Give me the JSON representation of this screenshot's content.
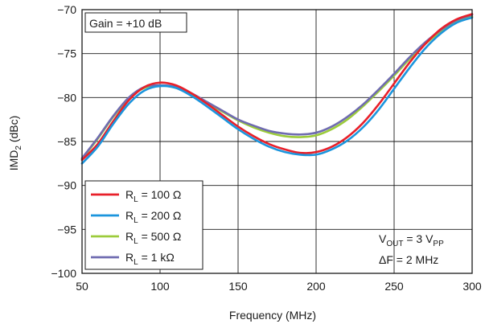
{
  "chart_data": {
    "type": "line",
    "xlabel": "Frequency (MHz)",
    "ylabel_main": "IMD",
    "ylabel_sub": "2",
    "ylabel_unit": " (dBc)",
    "xlim": [
      50,
      300
    ],
    "ylim": [
      -100,
      -70
    ],
    "xticks": [
      "50",
      "100",
      "150",
      "200",
      "250",
      "300"
    ],
    "yticks": [
      "−70",
      "−75",
      "−80",
      "−85",
      "−90",
      "−95",
      "−100"
    ],
    "grid": true,
    "gain_note": "Gain = +10 dB",
    "conditions": {
      "line1": {
        "v": "V",
        "out": "OUT",
        "eq": " = 3 V",
        "pp": "PP"
      },
      "line2": "ΔF = 2 MHz"
    },
    "legend_position": "bottom-left",
    "series": [
      {
        "name": "R",
        "name_sub": "L",
        "name_rest": " = 100 Ω",
        "color": "#e8202a",
        "x": [
          50,
          60,
          70,
          80,
          90,
          100,
          110,
          120,
          130,
          140,
          150,
          160,
          170,
          180,
          190,
          200,
          210,
          220,
          230,
          240,
          250,
          260,
          270,
          280,
          290,
          300
        ],
        "y": [
          -87.1,
          -85.3,
          -82.7,
          -80.3,
          -78.8,
          -78.3,
          -78.6,
          -79.5,
          -80.7,
          -82.0,
          -83.3,
          -84.4,
          -85.3,
          -85.9,
          -86.3,
          -86.2,
          -85.6,
          -84.5,
          -82.9,
          -80.8,
          -78.4,
          -76.0,
          -73.9,
          -72.2,
          -71.1,
          -70.5
        ]
      },
      {
        "name": "R",
        "name_sub": "L",
        "name_rest": " = 200 Ω",
        "color": "#1b95dd",
        "x": [
          50,
          60,
          70,
          80,
          90,
          100,
          110,
          120,
          130,
          140,
          150,
          160,
          170,
          180,
          190,
          200,
          210,
          220,
          230,
          240,
          250,
          260,
          270,
          280,
          290,
          300
        ],
        "y": [
          -87.5,
          -85.6,
          -83.0,
          -80.7,
          -79.2,
          -78.7,
          -78.9,
          -79.8,
          -81.0,
          -82.3,
          -83.6,
          -84.7,
          -85.6,
          -86.2,
          -86.5,
          -86.5,
          -85.9,
          -84.9,
          -83.4,
          -81.4,
          -79.0,
          -76.6,
          -74.4,
          -72.7,
          -71.5,
          -70.9
        ]
      },
      {
        "name": "R",
        "name_sub": "L",
        "name_rest": " = 500 Ω",
        "color": "#9ccb3b",
        "x": [
          50,
          60,
          70,
          80,
          90,
          100,
          110,
          120,
          130,
          140,
          150,
          160,
          170,
          180,
          190,
          200,
          210,
          220,
          230,
          240,
          250,
          260,
          270,
          280,
          290,
          300
        ],
        "y": [
          -87.0,
          -84.7,
          -82.2,
          -80.1,
          -78.9,
          -78.6,
          -78.9,
          -79.6,
          -80.6,
          -81.6,
          -82.6,
          -83.4,
          -84.0,
          -84.4,
          -84.5,
          -84.3,
          -83.6,
          -82.5,
          -81.0,
          -79.3,
          -77.5,
          -75.6,
          -73.9,
          -72.5,
          -71.4,
          -70.8
        ]
      },
      {
        "name": "R",
        "name_sub": "L",
        "name_rest": " = 1 kΩ",
        "color": "#6f6bb0",
        "x": [
          50,
          60,
          70,
          80,
          90,
          100,
          110,
          120,
          130,
          140,
          150,
          160,
          170,
          180,
          190,
          200,
          210,
          220,
          230,
          240,
          250,
          260,
          270,
          280,
          290,
          300
        ],
        "y": [
          -86.9,
          -84.6,
          -82.1,
          -80.0,
          -78.8,
          -78.6,
          -78.8,
          -79.5,
          -80.5,
          -81.5,
          -82.5,
          -83.2,
          -83.8,
          -84.1,
          -84.2,
          -84.0,
          -83.3,
          -82.2,
          -80.8,
          -79.1,
          -77.3,
          -75.4,
          -73.7,
          -72.3,
          -71.2,
          -70.6
        ]
      }
    ]
  }
}
